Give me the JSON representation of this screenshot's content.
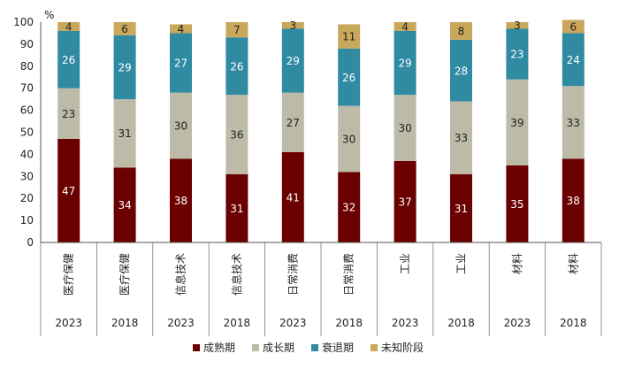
{
  "chart_data": {
    "type": "stacked-bar",
    "unit_label": "%",
    "ylim": [
      0,
      100
    ],
    "yticks": [
      0,
      10,
      20,
      30,
      40,
      50,
      60,
      70,
      80,
      90,
      100
    ],
    "categories": [
      {
        "sector": "医疗保健",
        "year": "2023"
      },
      {
        "sector": "医疗保健",
        "year": "2018"
      },
      {
        "sector": "信息技术",
        "year": "2023"
      },
      {
        "sector": "信息技术",
        "year": "2018"
      },
      {
        "sector": "日常消费",
        "year": "2023"
      },
      {
        "sector": "日常消费",
        "year": "2018"
      },
      {
        "sector": "工业",
        "year": "2023"
      },
      {
        "sector": "工业",
        "year": "2018"
      },
      {
        "sector": "材料",
        "year": "2023"
      },
      {
        "sector": "材料",
        "year": "2018"
      }
    ],
    "series": [
      {
        "name": "成熟期",
        "color": "#6b0000",
        "label_color": "#ffffff",
        "values": [
          47,
          34,
          38,
          31,
          41,
          32,
          37,
          31,
          35,
          38
        ]
      },
      {
        "name": "成长期",
        "color": "#bdbaa8",
        "label_color": "#222222",
        "values": [
          23,
          31,
          30,
          36,
          27,
          30,
          30,
          33,
          39,
          33
        ]
      },
      {
        "name": "衰退期",
        "color": "#2f8aa2",
        "label_color": "#ffffff",
        "values": [
          26,
          29,
          27,
          26,
          29,
          26,
          29,
          28,
          23,
          24
        ]
      },
      {
        "name": "未知阶段",
        "color": "#c9a85c",
        "label_color": "#222222",
        "values": [
          4,
          6,
          4,
          7,
          3,
          11,
          4,
          8,
          3,
          6
        ]
      }
    ]
  }
}
